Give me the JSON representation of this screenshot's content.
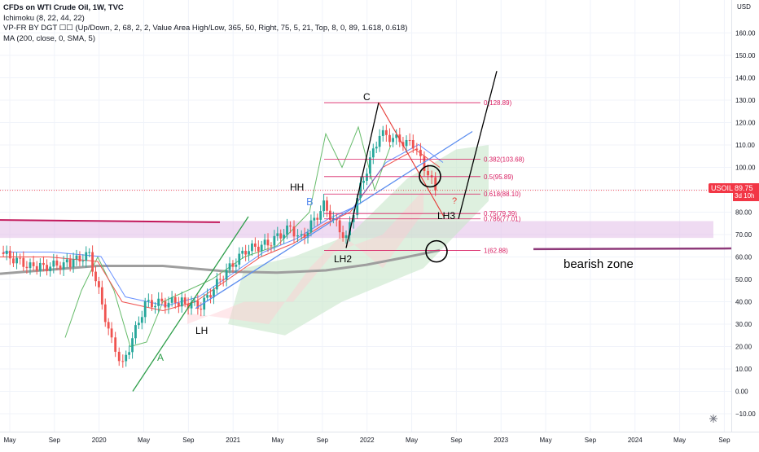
{
  "header": {
    "title": "CFDs on WTI Crude Oil, 1W, TVC",
    "indicators": [
      "Ichimoku (8, 22, 44, 22)",
      "VP-FR BY DGT ☐☐ (Up/Down, 2, 68, 2, 2, Value Area High/Low, 365, 50, Right, 75, 5, 21, Top, 8, 0, 89, 1.618, 0.618)",
      "MA (200, close, 0, SMA, 5)"
    ]
  },
  "price_axis": {
    "currency": "USD",
    "ticks": [
      "160.00",
      "150.00",
      "140.00",
      "130.00",
      "120.00",
      "110.00",
      "100.00",
      "90.00",
      "80.00",
      "70.00",
      "60.00",
      "50.00",
      "40.00",
      "30.00",
      "20.00",
      "10.00",
      "0.00",
      "−10.00"
    ],
    "last_price_symbol": "USOIL",
    "last_price": "89.75",
    "countdown": "3d 10h"
  },
  "time_axis": {
    "ticks": [
      "May",
      "Sep",
      "2020",
      "May",
      "Sep",
      "2021",
      "May",
      "Sep",
      "2022",
      "May",
      "Sep",
      "2023",
      "May",
      "Sep",
      "2024",
      "May",
      "Sep"
    ]
  },
  "annotations": {
    "labels": [
      "A",
      "B",
      "C",
      "HH",
      "LH",
      "LH2",
      "LH3",
      "?",
      "bearish zone"
    ],
    "fib_levels": [
      "0(128.89)",
      "0.382(103.68)",
      "0.5(95.89)",
      "0.618(88.10)",
      "0.75(79.39)",
      "0.786(77.01)",
      "1(62.88)"
    ]
  },
  "colors": {
    "up": "#26a69a",
    "down": "#ef5350",
    "fib": "#d81b60",
    "accent_blue": "#5b8def",
    "ma200": "#9e9e9e",
    "cloud_green": "#c8e6c9",
    "cloud_red": "#ffcdd2",
    "purple_zone": "#e1bee7"
  },
  "icons": [
    "settings-icon"
  ],
  "chart_data": {
    "type": "candlestick",
    "title": "CFDs on WTI Crude Oil, 1W, TVC",
    "ylim": [
      -14,
      170
    ],
    "y_unit": "USD",
    "x_range": [
      "2019-05",
      "2024-10"
    ],
    "close_series_approx": [
      {
        "date": "2019-05",
        "price": 62
      },
      {
        "date": "2019-08",
        "price": 55
      },
      {
        "date": "2019-11",
        "price": 57
      },
      {
        "date": "2020-01",
        "price": 61
      },
      {
        "date": "2020-03",
        "price": 22
      },
      {
        "date": "2020-04",
        "price": 12
      },
      {
        "date": "2020-06",
        "price": 39
      },
      {
        "date": "2020-09",
        "price": 40
      },
      {
        "date": "2020-11",
        "price": 38
      },
      {
        "date": "2021-01",
        "price": 52
      },
      {
        "date": "2021-03",
        "price": 63
      },
      {
        "date": "2021-05",
        "price": 66
      },
      {
        "date": "2021-07",
        "price": 73
      },
      {
        "date": "2021-08",
        "price": 68
      },
      {
        "date": "2021-10",
        "price": 83
      },
      {
        "date": "2021-12",
        "price": 68
      },
      {
        "date": "2022-01",
        "price": 87
      },
      {
        "date": "2022-03",
        "price": 115
      },
      {
        "date": "2022-06",
        "price": 110
      },
      {
        "date": "2022-07",
        "price": 100
      },
      {
        "date": "2022-08",
        "price": 90
      }
    ],
    "last_price": 89.75,
    "fibonacci": [
      {
        "label": "0(128.89)",
        "value": 128.89
      },
      {
        "label": "0.382(103.68)",
        "value": 103.68
      },
      {
        "label": "0.5(95.89)",
        "value": 95.89
      },
      {
        "label": "0.618(88.10)",
        "value": 88.1
      },
      {
        "label": "0.75(79.39)",
        "value": 79.39
      },
      {
        "label": "0.786(77.01)",
        "value": 77.01
      },
      {
        "label": "1(62.88)",
        "value": 62.88
      }
    ],
    "grid": true
  }
}
